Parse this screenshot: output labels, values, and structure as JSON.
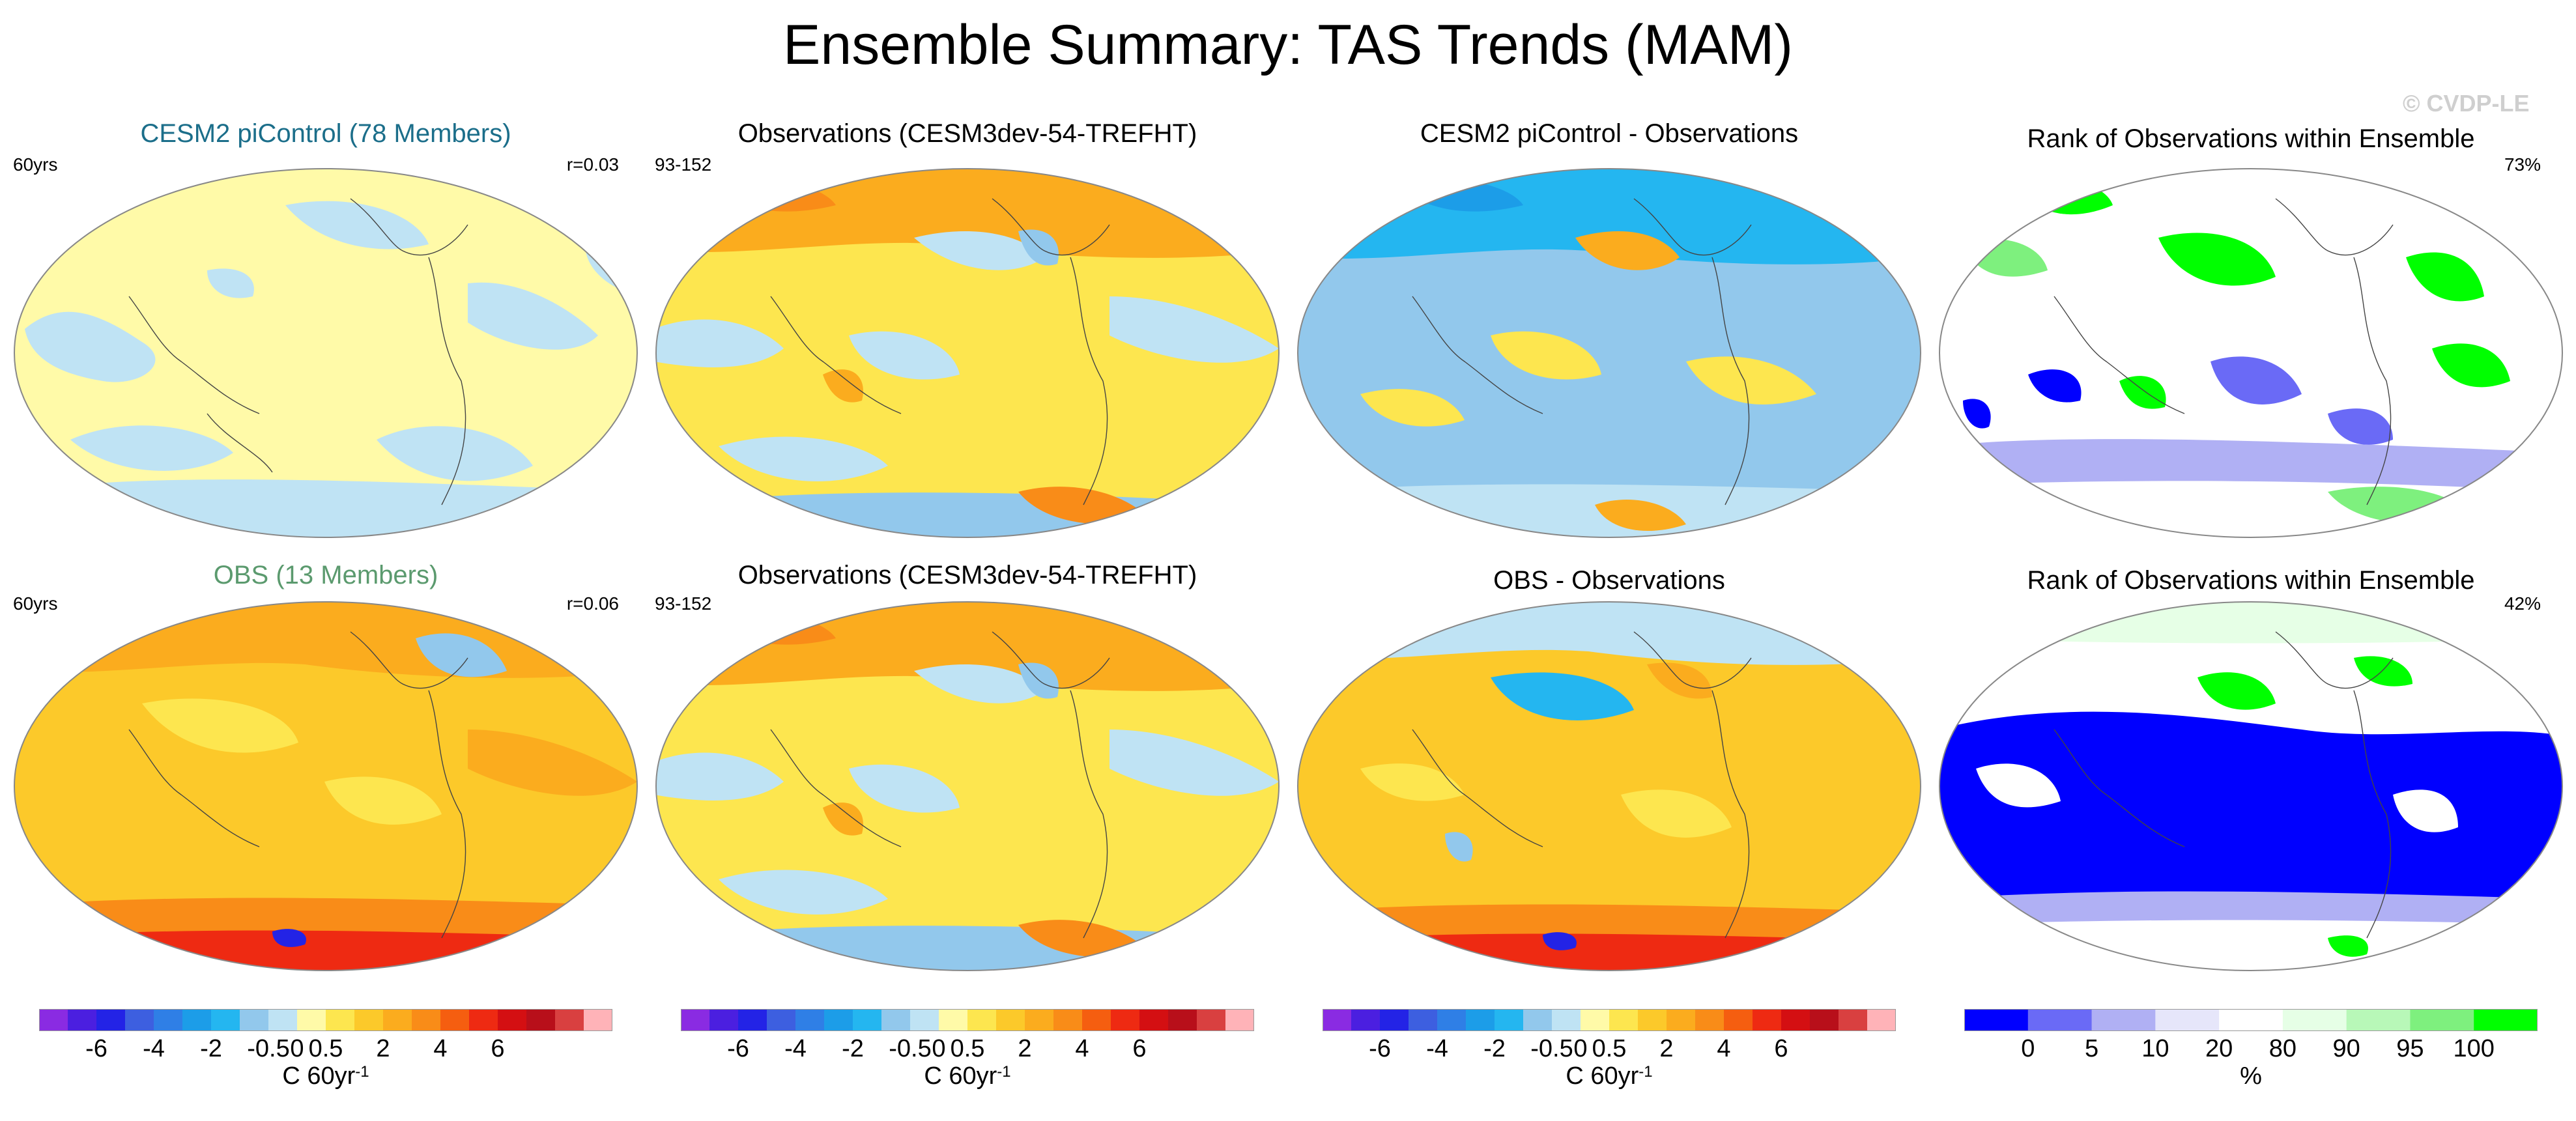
{
  "title": "Ensemble Summary: TAS Trends (MAM)",
  "watermark": "© CVDP-LE",
  "colors": {
    "ens_title": "#1b6e8a",
    "obs_title": "#5b9a6e",
    "trend_scale": [
      "#8a2be2",
      "#4b1fe0",
      "#2323e6",
      "#3d5fe0",
      "#2f7fe6",
      "#1c9de8",
      "#24b6f0",
      "#92c8ec",
      "#bfe3f4",
      "#fffaa8",
      "#fde64f",
      "#fcc92a",
      "#fbac1e",
      "#f98c18",
      "#f55e10",
      "#ee2a12",
      "#d40f12",
      "#b80f1a",
      "#d94040",
      "#ffb3b8"
    ],
    "rank_scale": [
      "#0000ff",
      "#6a6af6",
      "#b0b0f4",
      "#e6e6fa",
      "#ffffff",
      "#e6ffe6",
      "#b8f8b8",
      "#7ef07e",
      "#00ff00"
    ]
  },
  "chart_data": [
    {
      "type": "heatmap",
      "id": "r1c1",
      "title": "CESM2 piControl (78 Members)",
      "left_label": "60yrs",
      "right_label": "r=0.03",
      "variable": "TAS trend",
      "units": "C 60yr-1",
      "pattern": "weak positive (0 to 0.5) almost everywhere with near-zero/slightly negative (-0.5 to 0) patches",
      "range": [
        -0.5,
        0.5
      ]
    },
    {
      "type": "heatmap",
      "id": "r1c2",
      "title": "Observations (CESM3dev-54-TREFHT)",
      "left_label": "93-152",
      "right_label": "",
      "variable": "TAS trend",
      "units": "C 60yr-1",
      "pattern": "mixed: warming (1-2) over northern high latitudes, cooling (-0.5 to -2) over NE Pacific and Southern Ocean patches",
      "range": [
        -2,
        4
      ]
    },
    {
      "type": "heatmap",
      "id": "r1c3",
      "title": "CESM2 piControl - Observations",
      "left_label": "",
      "right_label": "",
      "variable": "TAS trend difference",
      "units": "C 60yr-1",
      "pattern": "mostly negative (-0.5 to -2) in Northern Hemisphere, positive patches over Pacific/Southern Ocean",
      "range": [
        -2,
        2
      ]
    },
    {
      "type": "heatmap",
      "id": "r1c4",
      "title": "Rank of Observations within Ensemble",
      "left_label": "",
      "right_label": "73%",
      "variable": "rank",
      "units": "%",
      "pattern": "mostly 20-80 (white) with green (>90) patches over continents and blue (<10) patches in tropics",
      "range": [
        0,
        100
      ]
    },
    {
      "type": "heatmap",
      "id": "r2c1",
      "title": "OBS (13 Members)",
      "left_label": "60yrs",
      "right_label": "r=0.06",
      "variable": "TAS trend",
      "units": "C 60yr-1",
      "pattern": "widespread warming (0.5 to 2), strong warming (4 to 6+) along Antarctic coast",
      "range": [
        -2,
        6
      ]
    },
    {
      "type": "heatmap",
      "id": "r2c2",
      "title": "Observations (CESM3dev-54-TREFHT)",
      "left_label": "93-152",
      "right_label": "",
      "variable": "TAS trend",
      "units": "C 60yr-1",
      "pattern": "mixed: warming (1-2) over northern high latitudes, cooling (-0.5 to -2) over NE Pacific and Southern Ocean patches",
      "range": [
        -2,
        4
      ]
    },
    {
      "type": "heatmap",
      "id": "r2c3",
      "title": "OBS - Observations",
      "left_label": "",
      "right_label": "",
      "variable": "TAS trend difference",
      "units": "C 60yr-1",
      "pattern": "mostly positive (0.5 to 2), negative over NE Pacific, strong positive along Antarctic coast",
      "range": [
        -2,
        6
      ]
    },
    {
      "type": "heatmap",
      "id": "r2c4",
      "title": "Rank of Observations within Ensemble",
      "left_label": "",
      "right_label": "42%",
      "variable": "rank",
      "units": "%",
      "pattern": "large blue (<10) region over Pacific, Indian and Southern oceans, green (>90) patches in north",
      "range": [
        0,
        100
      ]
    }
  ],
  "colorbars": [
    {
      "id": "cb1",
      "units_base": "C 60yr",
      "units_exp": "-1",
      "ticks": [
        "-6",
        "-4",
        "-2",
        "-0.5",
        "0",
        "0.5",
        "2",
        "4",
        "6"
      ],
      "tick_bins": [
        2,
        4,
        6,
        8,
        9,
        10,
        12,
        14,
        16
      ],
      "n_bins": 20
    },
    {
      "id": "cb2",
      "units_base": "C 60yr",
      "units_exp": "-1",
      "ticks": [
        "-6",
        "-4",
        "-2",
        "-0.5",
        "0",
        "0.5",
        "2",
        "4",
        "6"
      ],
      "tick_bins": [
        2,
        4,
        6,
        8,
        9,
        10,
        12,
        14,
        16
      ],
      "n_bins": 20
    },
    {
      "id": "cb3",
      "units_base": "C 60yr",
      "units_exp": "-1",
      "ticks": [
        "-6",
        "-4",
        "-2",
        "-0.5",
        "0",
        "0.5",
        "2",
        "4",
        "6"
      ],
      "tick_bins": [
        2,
        4,
        6,
        8,
        9,
        10,
        12,
        14,
        16
      ],
      "n_bins": 20
    },
    {
      "id": "cb4",
      "units_base": "%",
      "units_exp": "",
      "ticks": [
        "0",
        "5",
        "10",
        "20",
        "80",
        "90",
        "95",
        "100"
      ],
      "tick_bins": [
        1,
        2,
        3,
        4,
        5,
        6,
        7,
        8
      ],
      "n_bins": 9
    }
  ]
}
